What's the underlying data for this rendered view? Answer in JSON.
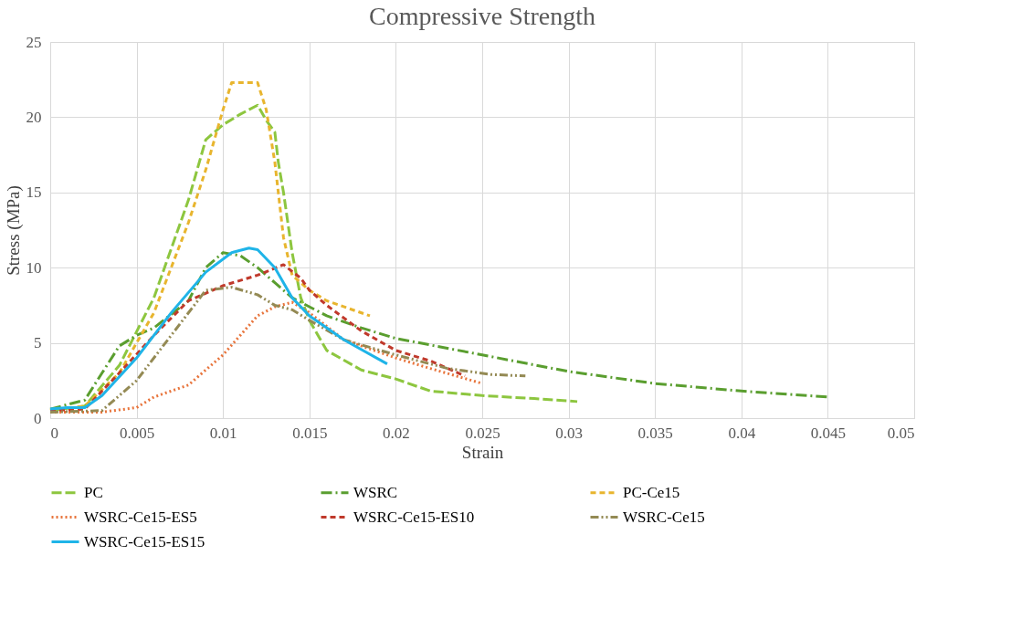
{
  "chart_data": {
    "type": "line",
    "title": "Compressive Strength",
    "xlabel": "Strain",
    "ylabel": "Stress (MPa)",
    "xlim": [
      0,
      0.05
    ],
    "xticks": [
      0,
      0.005,
      0.01,
      0.015,
      0.02,
      0.025,
      0.03,
      0.035,
      0.04,
      0.045,
      0.05
    ],
    "ylim": [
      0,
      25
    ],
    "yticks": [
      0,
      5,
      10,
      15,
      20,
      25
    ],
    "grid": true,
    "legend": "bottom",
    "marker": "none",
    "series": [
      {
        "name": "PC",
        "color": "#8dc63f",
        "line_style": "longdash",
        "x": [
          0,
          0.002,
          0.004,
          0.006,
          0.008,
          0.009,
          0.01,
          0.011,
          0.012,
          0.0125,
          0.013,
          0.0132,
          0.0135,
          0.014,
          0.0145,
          0.015,
          0.016,
          0.018,
          0.02,
          0.022,
          0.025,
          0.028,
          0.0305
        ],
        "values": [
          0.5,
          0.8,
          3.5,
          8,
          14.5,
          18.5,
          19.5,
          20.2,
          20.8,
          19.8,
          19,
          17,
          15,
          11,
          8,
          6.5,
          4.5,
          3.2,
          2.6,
          1.8,
          1.5,
          1.3,
          1.1
        ]
      },
      {
        "name": "WSRC",
        "color": "#5a9e2f",
        "line_style": "dashdot",
        "x": [
          0,
          0.002,
          0.003,
          0.004,
          0.005,
          0.006,
          0.008,
          0.009,
          0.01,
          0.011,
          0.012,
          0.013,
          0.014,
          0.016,
          0.018,
          0.02,
          0.025,
          0.03,
          0.035,
          0.04,
          0.045
        ],
        "values": [
          0.6,
          1.2,
          3,
          4.8,
          5.5,
          6,
          7.8,
          10,
          11,
          10.8,
          10,
          9,
          8,
          6.8,
          6,
          5.3,
          4.2,
          3.1,
          2.3,
          1.8,
          1.4
        ]
      },
      {
        "name": "PC-Ce15",
        "color": "#e8b52e",
        "line_style": "dashed",
        "x": [
          0,
          0.002,
          0.004,
          0.006,
          0.008,
          0.009,
          0.01,
          0.0105,
          0.012,
          0.0125,
          0.013,
          0.0135,
          0.014,
          0.015,
          0.016,
          0.0185
        ],
        "values": [
          0.5,
          0.8,
          3,
          7,
          13,
          16.5,
          20.5,
          22.3,
          22.3,
          20.5,
          17,
          12,
          9.5,
          8.5,
          7.8,
          6.8
        ]
      },
      {
        "name": "WSRC-Ce15-ES5",
        "color": "#e8743b",
        "line_style": "dotted",
        "x": [
          0,
          0.003,
          0.005,
          0.006,
          0.008,
          0.009,
          0.01,
          0.011,
          0.012,
          0.013,
          0.014,
          0.015,
          0.017,
          0.02,
          0.022,
          0.025
        ],
        "values": [
          0.4,
          0.4,
          0.7,
          1.4,
          2.2,
          3.2,
          4.2,
          5.5,
          6.8,
          7.4,
          7.7,
          7,
          5.2,
          4,
          3.3,
          2.3
        ]
      },
      {
        "name": "WSRC-Ce15-ES10",
        "color": "#c0392b",
        "line_style": "dashed",
        "x": [
          0,
          0.002,
          0.004,
          0.006,
          0.008,
          0.01,
          0.012,
          0.0135,
          0.0145,
          0.015,
          0.016,
          0.018,
          0.02,
          0.022,
          0.024
        ],
        "values": [
          0.5,
          0.6,
          3,
          5.5,
          7.8,
          8.8,
          9.5,
          10.2,
          9.3,
          8.5,
          7.5,
          5.8,
          4.5,
          3.8,
          2.8
        ]
      },
      {
        "name": "WSRC-Ce15",
        "color": "#948a54",
        "line_style": "dashdotdot",
        "x": [
          0,
          0.003,
          0.005,
          0.007,
          0.009,
          0.0105,
          0.012,
          0.013,
          0.014,
          0.015,
          0.017,
          0.02,
          0.023,
          0.0255,
          0.0275
        ],
        "values": [
          0.4,
          0.5,
          2.5,
          5.5,
          8.5,
          8.7,
          8.2,
          7.5,
          7.2,
          6.5,
          5.2,
          4.2,
          3.3,
          2.9,
          2.8
        ]
      },
      {
        "name": "WSRC-Ce15-ES15",
        "color": "#1fb4e8",
        "line_style": "solid",
        "x": [
          0,
          0.001,
          0.002,
          0.003,
          0.005,
          0.007,
          0.009,
          0.0105,
          0.0115,
          0.012,
          0.013,
          0.014,
          0.015,
          0.017,
          0.0195
        ],
        "values": [
          0.6,
          0.7,
          0.7,
          1.5,
          4,
          7,
          9.7,
          11,
          11.3,
          11.2,
          10,
          8,
          6.8,
          5.2,
          3.6
        ]
      }
    ]
  }
}
